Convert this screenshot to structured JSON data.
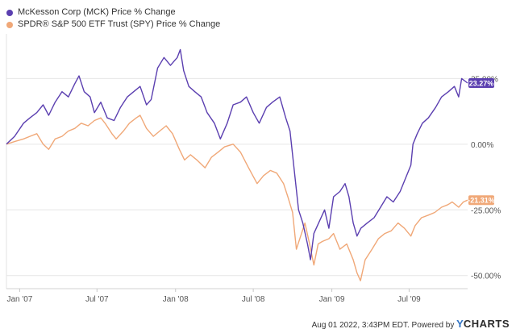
{
  "legend": {
    "items": [
      {
        "label": "McKesson Corp (MCK) Price % Change",
        "color": "#5b3fb0"
      },
      {
        "label": "SPDR® S&P 500 ETF Trust (SPY) Price % Change",
        "color": "#f0a878"
      }
    ]
  },
  "footer": {
    "text": "Aug 01 2022, 3:43PM EDT. Powered by ",
    "brand_y": "Y",
    "brand_rest": "CHARTS"
  },
  "chart_data": {
    "type": "line",
    "title": "",
    "xlabel": "",
    "ylabel": "",
    "x_range": [
      "2006-12-01",
      "2009-11-15"
    ],
    "x_ticks": [
      {
        "date": "2007-01-01",
        "label": "Jan '07"
      },
      {
        "date": "2007-07-01",
        "label": "Jul '07"
      },
      {
        "date": "2008-01-01",
        "label": "Jan '08"
      },
      {
        "date": "2008-07-01",
        "label": "Jul '08"
      },
      {
        "date": "2009-01-01",
        "label": "Jan '09"
      },
      {
        "date": "2009-07-01",
        "label": "Jul '09"
      }
    ],
    "ylim": [
      -55,
      42
    ],
    "y_ticks": [
      {
        "value": 25,
        "label": "25.00%"
      },
      {
        "value": 0,
        "label": "0.00%"
      },
      {
        "value": -25,
        "label": "-25.00%"
      },
      {
        "value": -50,
        "label": "-50.00%"
      }
    ],
    "y_axis_position": "right",
    "grid": "horizontal",
    "legend_position": "top-left",
    "series": [
      {
        "name": "McKesson Corp (MCK) Price % Change",
        "color": "#5b3fb0",
        "end_label": "23.27%",
        "points": [
          [
            "2006-12-01",
            0.0
          ],
          [
            "2006-12-20",
            3.0
          ],
          [
            "2007-01-10",
            8.0
          ],
          [
            "2007-01-25",
            10.0
          ],
          [
            "2007-02-10",
            12.0
          ],
          [
            "2007-02-25",
            15.0
          ],
          [
            "2007-03-10",
            11.0
          ],
          [
            "2007-03-25",
            16.0
          ],
          [
            "2007-04-10",
            20.0
          ],
          [
            "2007-04-25",
            18.0
          ],
          [
            "2007-05-10",
            23.0
          ],
          [
            "2007-05-20",
            26.0
          ],
          [
            "2007-06-01",
            20.0
          ],
          [
            "2007-06-15",
            18.0
          ],
          [
            "2007-06-25",
            12.0
          ],
          [
            "2007-07-10",
            16.0
          ],
          [
            "2007-07-25",
            10.0
          ],
          [
            "2007-08-10",
            9.0
          ],
          [
            "2007-08-25",
            14.0
          ],
          [
            "2007-09-10",
            18.0
          ],
          [
            "2007-09-25",
            20.0
          ],
          [
            "2007-10-10",
            22.0
          ],
          [
            "2007-10-25",
            15.0
          ],
          [
            "2007-11-05",
            17.0
          ],
          [
            "2007-11-20",
            29.0
          ],
          [
            "2007-12-05",
            33.0
          ],
          [
            "2007-12-20",
            30.0
          ],
          [
            "2008-01-05",
            33.0
          ],
          [
            "2008-01-12",
            36.0
          ],
          [
            "2008-01-20",
            28.0
          ],
          [
            "2008-02-01",
            22.0
          ],
          [
            "2008-02-15",
            20.0
          ],
          [
            "2008-03-01",
            18.0
          ],
          [
            "2008-03-15",
            12.0
          ],
          [
            "2008-04-01",
            8.0
          ],
          [
            "2008-04-15",
            2.0
          ],
          [
            "2008-05-01",
            8.0
          ],
          [
            "2008-05-15",
            15.0
          ],
          [
            "2008-06-01",
            16.0
          ],
          [
            "2008-06-15",
            18.0
          ],
          [
            "2008-07-01",
            12.0
          ],
          [
            "2008-07-15",
            8.0
          ],
          [
            "2008-08-01",
            14.0
          ],
          [
            "2008-08-15",
            16.0
          ],
          [
            "2008-09-01",
            18.0
          ],
          [
            "2008-09-15",
            10.0
          ],
          [
            "2008-09-25",
            5.0
          ],
          [
            "2008-10-05",
            -10.0
          ],
          [
            "2008-10-15",
            -25.0
          ],
          [
            "2008-10-25",
            -30.0
          ],
          [
            "2008-11-05",
            -38.0
          ],
          [
            "2008-11-12",
            -44.0
          ],
          [
            "2008-11-20",
            -34.0
          ],
          [
            "2008-12-01",
            -30.0
          ],
          [
            "2008-12-15",
            -25.0
          ],
          [
            "2008-12-25",
            -32.0
          ],
          [
            "2009-01-05",
            -20.0
          ],
          [
            "2009-01-20",
            -18.0
          ],
          [
            "2009-02-01",
            -15.0
          ],
          [
            "2009-02-10",
            -20.0
          ],
          [
            "2009-02-20",
            -30.0
          ],
          [
            "2009-03-01",
            -35.0
          ],
          [
            "2009-03-10",
            -32.0
          ],
          [
            "2009-03-25",
            -30.0
          ],
          [
            "2009-04-10",
            -28.0
          ],
          [
            "2009-04-25",
            -24.0
          ],
          [
            "2009-05-10",
            -20.0
          ],
          [
            "2009-05-25",
            -22.0
          ],
          [
            "2009-06-10",
            -18.0
          ],
          [
            "2009-06-25",
            -12.0
          ],
          [
            "2009-07-05",
            -8.0
          ],
          [
            "2009-07-10",
            0.0
          ],
          [
            "2009-07-20",
            4.0
          ],
          [
            "2009-08-01",
            8.0
          ],
          [
            "2009-08-15",
            10.0
          ],
          [
            "2009-09-01",
            14.0
          ],
          [
            "2009-09-15",
            18.0
          ],
          [
            "2009-10-01",
            20.0
          ],
          [
            "2009-10-15",
            22.0
          ],
          [
            "2009-10-25",
            18.0
          ],
          [
            "2009-11-01",
            25.0
          ],
          [
            "2009-11-15",
            23.27
          ]
        ]
      },
      {
        "name": "SPDR® S&P 500 ETF Trust (SPY) Price % Change",
        "color": "#f0a878",
        "end_label": "-21.31%",
        "points": [
          [
            "2006-12-01",
            0.0
          ],
          [
            "2006-12-20",
            1.0
          ],
          [
            "2007-01-10",
            2.0
          ],
          [
            "2007-01-25",
            3.0
          ],
          [
            "2007-02-10",
            4.0
          ],
          [
            "2007-02-25",
            0.0
          ],
          [
            "2007-03-10",
            -2.0
          ],
          [
            "2007-03-25",
            2.0
          ],
          [
            "2007-04-10",
            3.0
          ],
          [
            "2007-04-25",
            5.0
          ],
          [
            "2007-05-10",
            6.0
          ],
          [
            "2007-05-25",
            8.0
          ],
          [
            "2007-06-10",
            7.0
          ],
          [
            "2007-06-25",
            9.0
          ],
          [
            "2007-07-10",
            10.0
          ],
          [
            "2007-07-20",
            8.0
          ],
          [
            "2007-08-05",
            4.0
          ],
          [
            "2007-08-15",
            2.0
          ],
          [
            "2007-09-01",
            5.0
          ],
          [
            "2007-09-15",
            8.0
          ],
          [
            "2007-10-01",
            10.0
          ],
          [
            "2007-10-10",
            11.0
          ],
          [
            "2007-10-25",
            6.0
          ],
          [
            "2007-11-10",
            3.0
          ],
          [
            "2007-11-25",
            5.0
          ],
          [
            "2007-12-10",
            7.0
          ],
          [
            "2007-12-25",
            4.0
          ],
          [
            "2008-01-10",
            -2.0
          ],
          [
            "2008-01-22",
            -6.0
          ],
          [
            "2008-02-05",
            -4.0
          ],
          [
            "2008-02-20",
            -6.0
          ],
          [
            "2008-03-10",
            -9.0
          ],
          [
            "2008-03-25",
            -5.0
          ],
          [
            "2008-04-10",
            -3.0
          ],
          [
            "2008-04-25",
            -1.0
          ],
          [
            "2008-05-15",
            0.0
          ],
          [
            "2008-06-01",
            -3.0
          ],
          [
            "2008-06-20",
            -9.0
          ],
          [
            "2008-07-10",
            -15.0
          ],
          [
            "2008-07-25",
            -12.0
          ],
          [
            "2008-08-10",
            -10.0
          ],
          [
            "2008-08-25",
            -11.0
          ],
          [
            "2008-09-10",
            -15.0
          ],
          [
            "2008-09-20",
            -20.0
          ],
          [
            "2008-10-01",
            -26.0
          ],
          [
            "2008-10-10",
            -40.0
          ],
          [
            "2008-10-20",
            -35.0
          ],
          [
            "2008-10-30",
            -30.0
          ],
          [
            "2008-11-10",
            -38.0
          ],
          [
            "2008-11-20",
            -46.0
          ],
          [
            "2008-11-30",
            -38.0
          ],
          [
            "2008-12-10",
            -37.0
          ],
          [
            "2008-12-25",
            -36.0
          ],
          [
            "2009-01-05",
            -34.0
          ],
          [
            "2009-01-20",
            -40.0
          ],
          [
            "2009-02-05",
            -38.0
          ],
          [
            "2009-02-20",
            -44.0
          ],
          [
            "2009-03-01",
            -49.0
          ],
          [
            "2009-03-09",
            -52.0
          ],
          [
            "2009-03-20",
            -44.0
          ],
          [
            "2009-04-05",
            -40.0
          ],
          [
            "2009-04-20",
            -36.0
          ],
          [
            "2009-05-05",
            -34.0
          ],
          [
            "2009-05-20",
            -33.0
          ],
          [
            "2009-06-05",
            -30.0
          ],
          [
            "2009-06-20",
            -32.0
          ],
          [
            "2009-07-05",
            -35.0
          ],
          [
            "2009-07-15",
            -31.0
          ],
          [
            "2009-07-30",
            -28.0
          ],
          [
            "2009-08-15",
            -27.0
          ],
          [
            "2009-08-30",
            -26.0
          ],
          [
            "2009-09-15",
            -24.0
          ],
          [
            "2009-09-30",
            -23.0
          ],
          [
            "2009-10-10",
            -22.0
          ],
          [
            "2009-10-25",
            -24.0
          ],
          [
            "2009-11-05",
            -22.0
          ],
          [
            "2009-11-15",
            -21.31
          ]
        ]
      }
    ]
  }
}
